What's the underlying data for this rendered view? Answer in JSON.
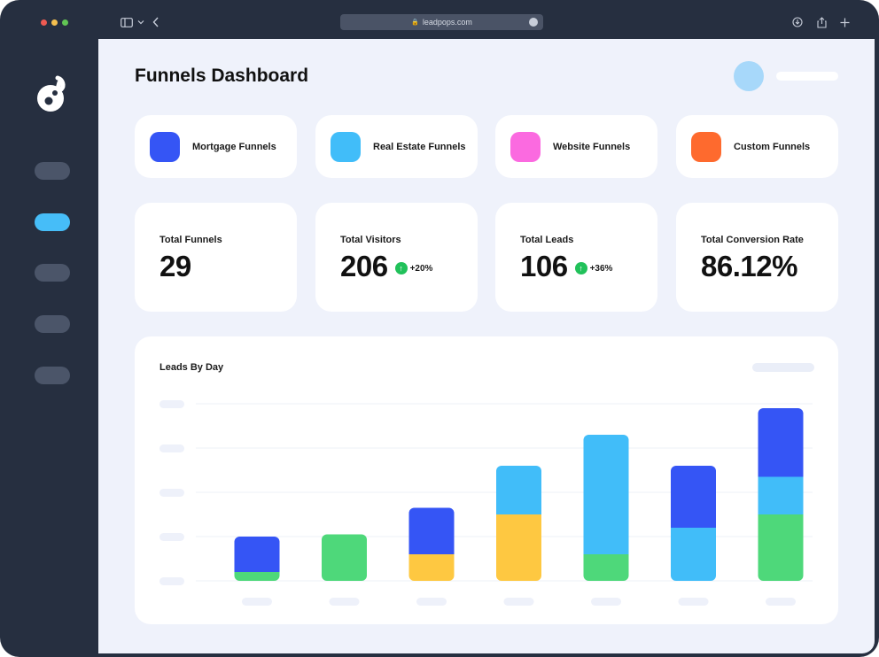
{
  "browser": {
    "url": "leadpops.com",
    "traffic_lights": [
      "#ee5a52",
      "#f4bf4f",
      "#61c554"
    ]
  },
  "colors": {
    "blue": "#3555f5",
    "light_blue": "#41bdf9",
    "green": "#4ed87a",
    "yellow": "#fec841",
    "pink": "#fb6ae0",
    "orange": "#fe6a2e"
  },
  "sidebar": {
    "items": [
      {
        "active": false
      },
      {
        "active": true
      },
      {
        "active": false
      },
      {
        "active": false
      },
      {
        "active": false
      }
    ]
  },
  "header": {
    "title": "Funnels Dashboard"
  },
  "funnels": [
    {
      "label": "Mortgage Funnels",
      "color": "#3555f5"
    },
    {
      "label": "Real Estate Funnels",
      "color": "#41bdf9"
    },
    {
      "label": "Website Funnels",
      "color": "#fb6ae0"
    },
    {
      "label": "Custom Funnels",
      "color": "#fe6a2e"
    }
  ],
  "stats": [
    {
      "label": "Total Funnels",
      "value": "29",
      "trend": ""
    },
    {
      "label": "Total Visitors",
      "value": "206",
      "trend": "+20%"
    },
    {
      "label": "Total Leads",
      "value": "106",
      "trend": "+36%"
    },
    {
      "label": "Total Conversion Rate",
      "value": "86.12%",
      "trend": ""
    }
  ],
  "chart": {
    "title": "Leads By Day"
  },
  "chart_data": {
    "type": "bar",
    "stacked": true,
    "title": "Leads By Day",
    "ylim": [
      0,
      4
    ],
    "grid": true,
    "series_colors": [
      "#4ed87a",
      "#fec841",
      "#41bdf9",
      "#3555f5"
    ],
    "series": [
      {
        "values": [
          0.2,
          1.05,
          0,
          0,
          0.6,
          0,
          1.5
        ]
      },
      {
        "values": [
          0,
          0,
          0.6,
          1.5,
          0,
          0,
          0
        ]
      },
      {
        "values": [
          0,
          0,
          0,
          1.1,
          2.7,
          1.2,
          0.85
        ]
      },
      {
        "values": [
          0.8,
          0,
          1.05,
          0,
          0,
          1.4,
          1.55
        ]
      }
    ]
  }
}
